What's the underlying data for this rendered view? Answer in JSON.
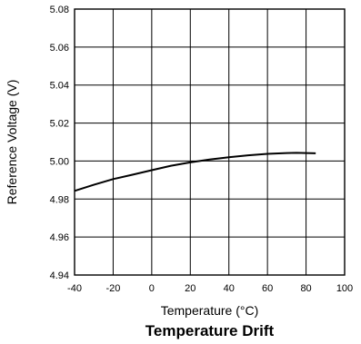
{
  "chart_data": {
    "type": "line",
    "title": "Temperature Drift",
    "xlabel": "Temperature (°C)",
    "ylabel": "Reference Voltage (V)",
    "xlim": [
      -40,
      100
    ],
    "ylim": [
      4.94,
      5.08
    ],
    "xticks": [
      "-40",
      "-20",
      "0",
      "20",
      "40",
      "60",
      "80",
      "100"
    ],
    "yticks": [
      "4.94",
      "4.96",
      "4.98",
      "5.00",
      "5.02",
      "5.04",
      "5.06",
      "5.08"
    ],
    "grid": true,
    "series": [
      {
        "color": "#000000",
        "x": [
          -40,
          -30,
          -20,
          -10,
          0,
          10,
          20,
          30,
          40,
          50,
          60,
          70,
          75,
          80,
          85
        ],
        "y": [
          4.9843,
          4.9875,
          4.9905,
          4.9928,
          4.9952,
          4.9975,
          4.9993,
          5.0008,
          5.002,
          5.003,
          5.0038,
          5.0042,
          5.0043,
          5.0042,
          5.0041
        ]
      }
    ]
  }
}
